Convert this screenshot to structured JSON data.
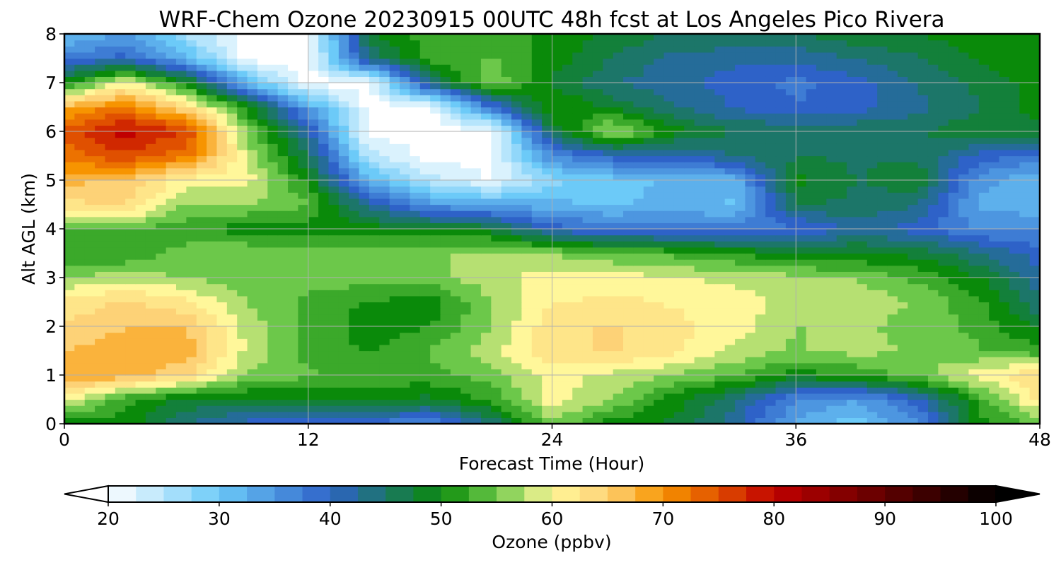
{
  "chart_data": {
    "type": "heatmap",
    "title": "WRF-Chem Ozone  20230915 00UTC 48h fcst at Los Angeles Pico Rivera",
    "xlabel": "Forecast Time (Hour)",
    "ylabel": "Alt AGL (km)",
    "xlim": [
      0,
      48
    ],
    "ylim": [
      0,
      8
    ],
    "x_ticks": [
      0,
      12,
      24,
      36,
      48
    ],
    "y_ticks": [
      0,
      1,
      2,
      3,
      4,
      5,
      6,
      7,
      8
    ],
    "grid": true,
    "colorbar": {
      "label": "Ozone  (ppbv)",
      "min": 20,
      "max": 100,
      "ticks": [
        20,
        30,
        40,
        50,
        60,
        70,
        80,
        90,
        100
      ],
      "extend": "both",
      "stops": [
        {
          "v": 20,
          "c": "#ffffff"
        },
        {
          "v": 30,
          "c": "#6ccaf8"
        },
        {
          "v": 40,
          "c": "#2e62c8"
        },
        {
          "v": 50,
          "c": "#0a8a0a"
        },
        {
          "v": 55,
          "c": "#6cc84a"
        },
        {
          "v": 60,
          "c": "#fff79a"
        },
        {
          "v": 65,
          "c": "#fdd277"
        },
        {
          "v": 70,
          "c": "#f79400"
        },
        {
          "v": 75,
          "c": "#e05000"
        },
        {
          "v": 80,
          "c": "#c00000"
        },
        {
          "v": 90,
          "c": "#600000"
        },
        {
          "v": 100,
          "c": "#000000"
        }
      ]
    },
    "x": [
      0,
      3,
      6,
      9,
      12,
      15,
      18,
      21,
      24,
      27,
      30,
      33,
      36,
      39,
      42,
      45,
      48
    ],
    "y": [
      0,
      0.5,
      1,
      1.5,
      2,
      2.5,
      3,
      3.5,
      4,
      4.5,
      5,
      5.5,
      6,
      6.5,
      7,
      7.5,
      8
    ],
    "z": [
      [
        50,
        50,
        44,
        40,
        39,
        38,
        36,
        44,
        56,
        50,
        48,
        42,
        33,
        30,
        36,
        50,
        55
      ],
      [
        60,
        52,
        48,
        48,
        49,
        49,
        48,
        52,
        60,
        56,
        50,
        44,
        36,
        34,
        40,
        52,
        62
      ],
      [
        68,
        68,
        64,
        56,
        54,
        53,
        53,
        55,
        60,
        58,
        56,
        54,
        50,
        52,
        55,
        60,
        64
      ],
      [
        66,
        68,
        68,
        58,
        53,
        51,
        54,
        58,
        63,
        64,
        62,
        58,
        56,
        57,
        56,
        54,
        52
      ],
      [
        64,
        66,
        66,
        58,
        53,
        50,
        51,
        56,
        63,
        64,
        62,
        60,
        56,
        57,
        55,
        53,
        48
      ],
      [
        62,
        64,
        62,
        56,
        53,
        51,
        50,
        56,
        61,
        62,
        61,
        60,
        58,
        58,
        56,
        52,
        44
      ],
      [
        56,
        58,
        56,
        55,
        55,
        55,
        55,
        58,
        60,
        60,
        59,
        58,
        57,
        56,
        53,
        49,
        42
      ],
      [
        52,
        51,
        55,
        56,
        55,
        55,
        56,
        57,
        56,
        54,
        53,
        51,
        49,
        49,
        48,
        44,
        40
      ],
      [
        53,
        54,
        52,
        50,
        50,
        50,
        49,
        48,
        40,
        38,
        38,
        37,
        38,
        42,
        40,
        36,
        36
      ],
      [
        63,
        64,
        56,
        56,
        54,
        42,
        35,
        33,
        32,
        31,
        32,
        31,
        46,
        46,
        44,
        33,
        32
      ],
      [
        67,
        66,
        60,
        60,
        50,
        32,
        25,
        21,
        28,
        30,
        32,
        32,
        50,
        46,
        48,
        35,
        31
      ],
      [
        72,
        76,
        72,
        58,
        46,
        25,
        20,
        20,
        36,
        40,
        40,
        44,
        46,
        46,
        46,
        40,
        38
      ],
      [
        75,
        80,
        76,
        56,
        42,
        20,
        20,
        20,
        46,
        58,
        50,
        46,
        46,
        46,
        46,
        48,
        48
      ],
      [
        68,
        72,
        64,
        50,
        34,
        20,
        20,
        38,
        52,
        48,
        44,
        41,
        39,
        40,
        43,
        46,
        50
      ],
      [
        50,
        60,
        50,
        32,
        20,
        20,
        44,
        56,
        48,
        44,
        42,
        40,
        38,
        40,
        44,
        47,
        50
      ],
      [
        38,
        40,
        32,
        20,
        20,
        44,
        52,
        54,
        50,
        46,
        43,
        42,
        42,
        44,
        46,
        49,
        51
      ],
      [
        30,
        34,
        26,
        20,
        20,
        48,
        53,
        52,
        51,
        48,
        46,
        46,
        46,
        48,
        49,
        50,
        51
      ]
    ]
  }
}
